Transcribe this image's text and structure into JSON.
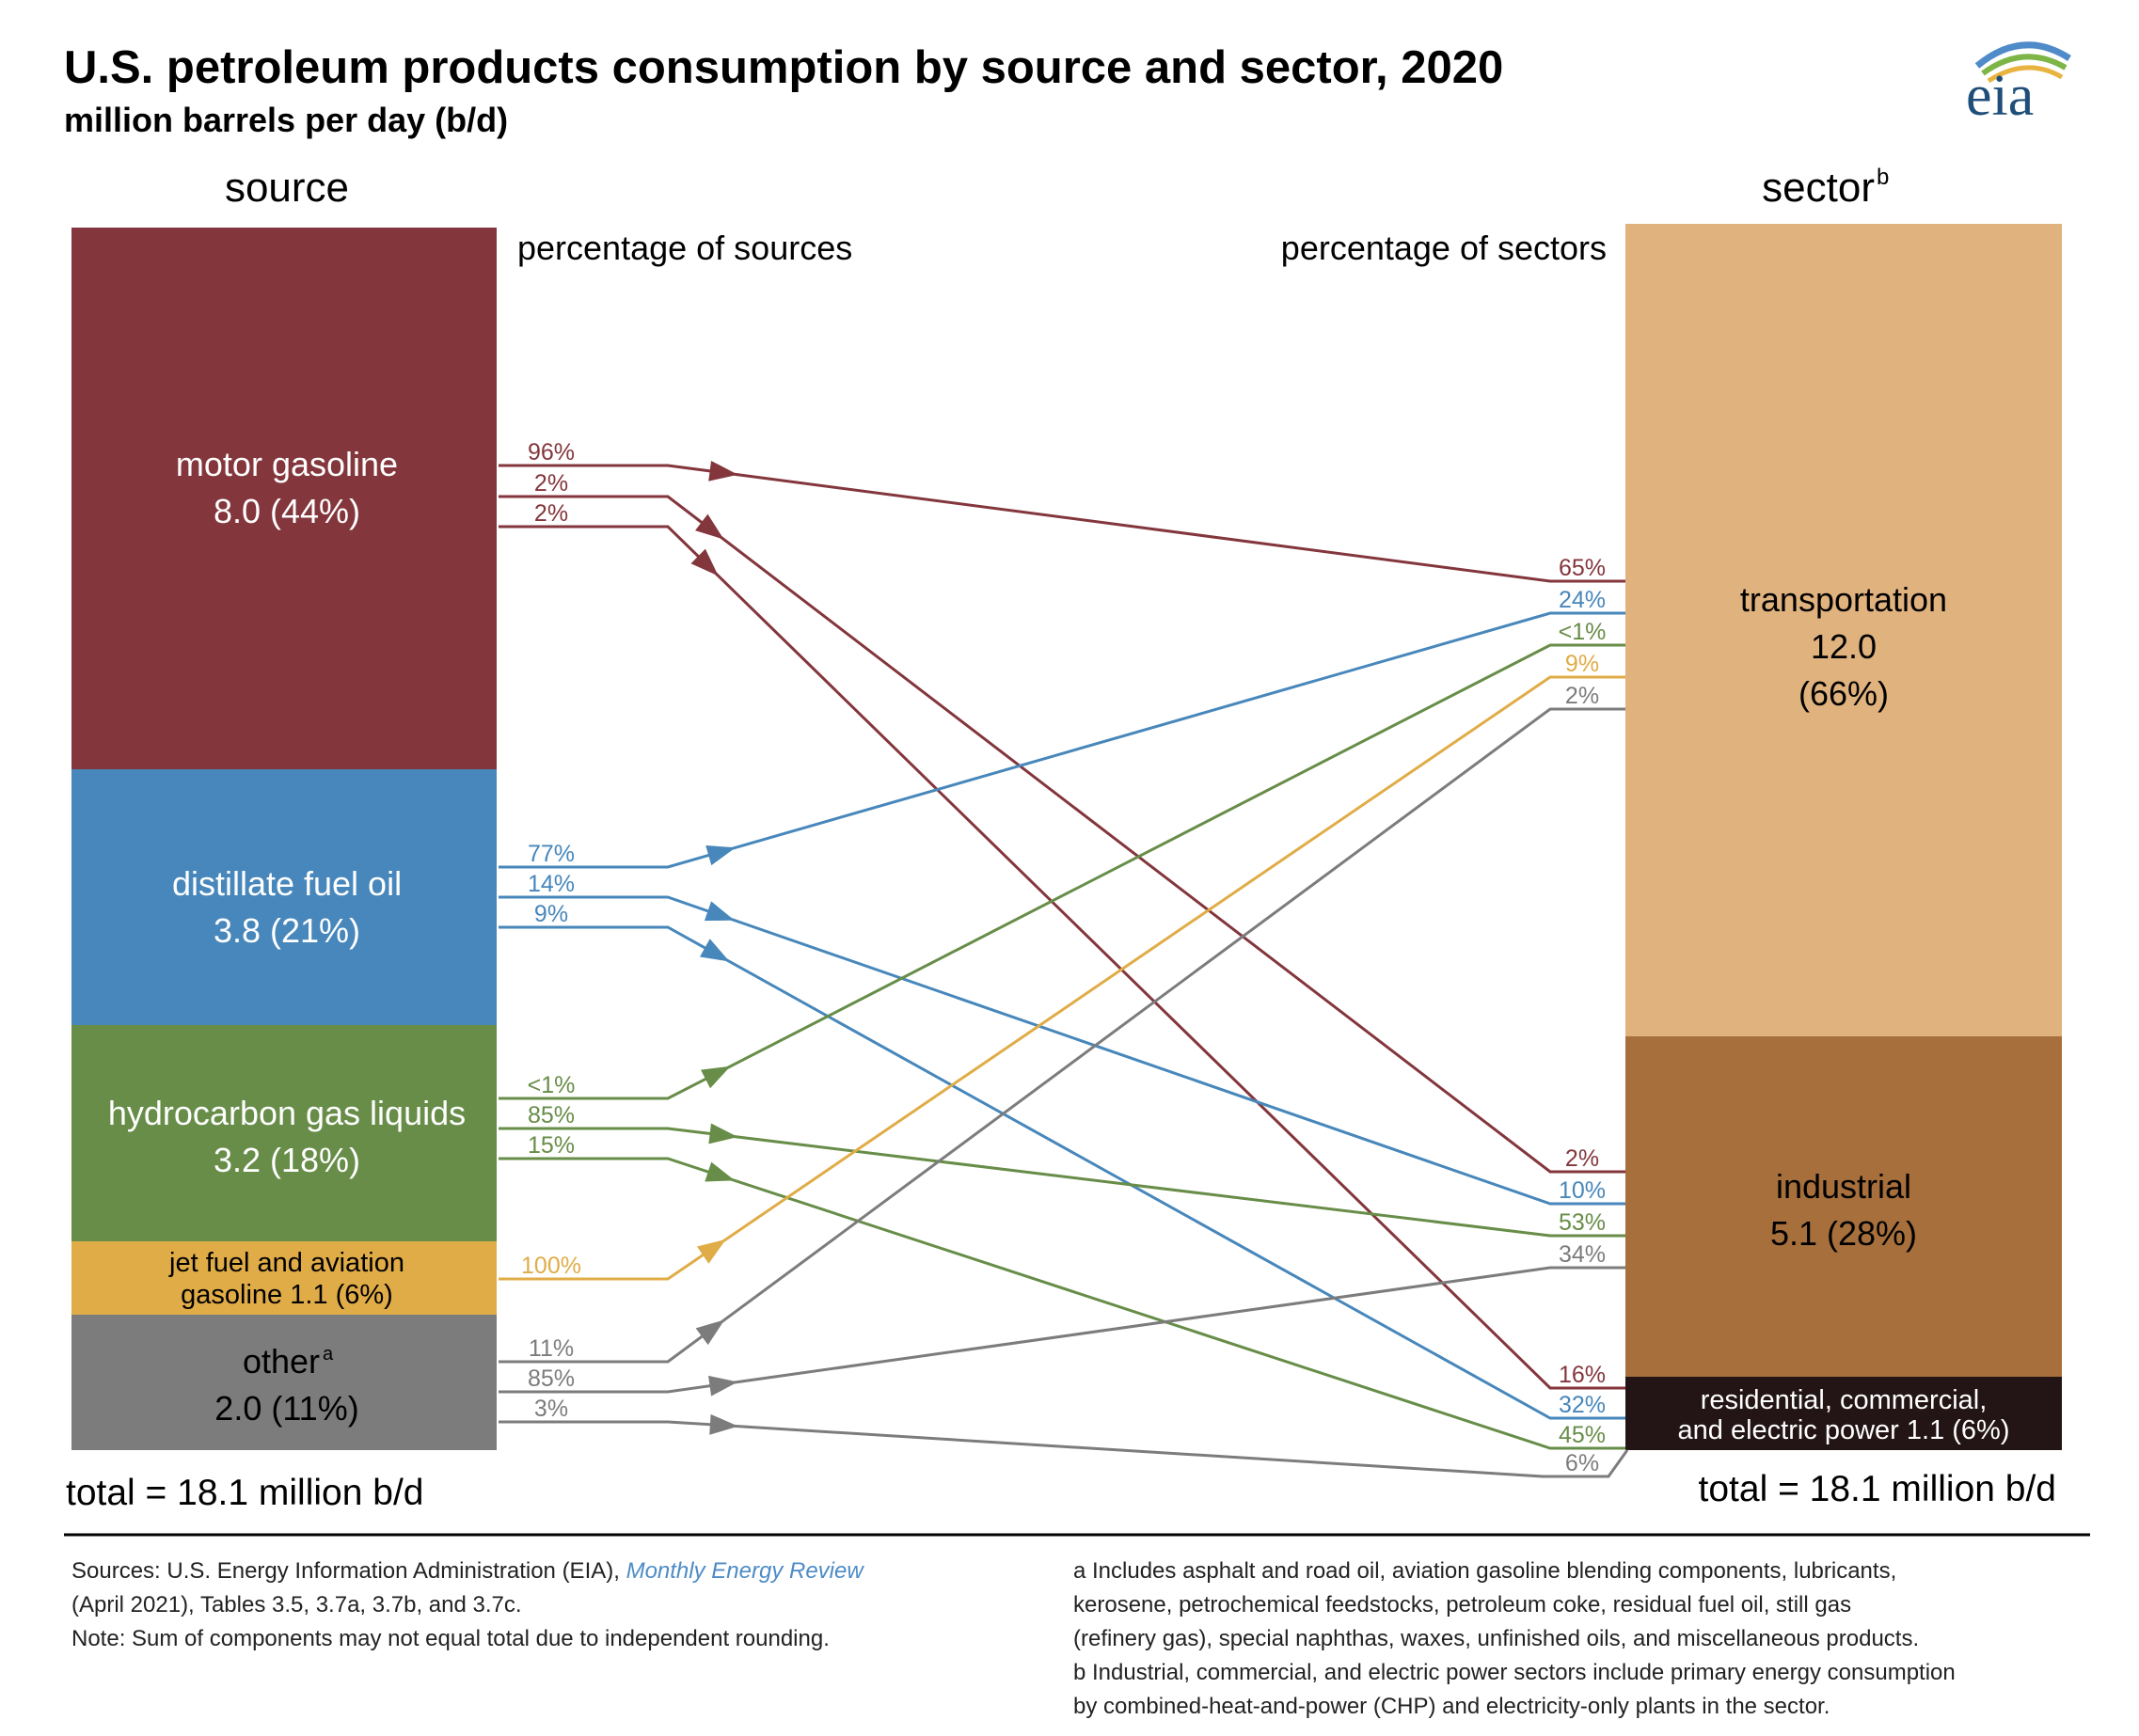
{
  "title": "U.S. petroleum products consumption by source and sector, 2020",
  "subtitle": "million barrels per day (b/d)",
  "logo_text": "eia",
  "chart_data": {
    "type": "sankey",
    "units": "million barrels per day (b/d)",
    "source_header": "source",
    "sector_header": "sector",
    "sector_header_sup": "b",
    "source_pct_label": "percentage of sources",
    "sector_pct_label": "percentage of sectors",
    "sources": [
      {
        "name": "motor gasoline",
        "value_text": "8.0 (44%)",
        "value": 8.0,
        "share": 44,
        "color": "#83363C"
      },
      {
        "name": "distillate fuel oil",
        "value_text": "3.8 (21%)",
        "value": 3.8,
        "share": 21,
        "color": "#4787BB"
      },
      {
        "name": "hydrocarbon gas liquids",
        "value_text": "3.2 (18%)",
        "value": 3.2,
        "share": 18,
        "color": "#678D48"
      },
      {
        "name": "jet fuel and aviation",
        "name2": "gasoline  1.1 (6%)",
        "value": 1.1,
        "share": 6,
        "color": "#E0AC47"
      },
      {
        "name": "other",
        "name_sup": "a",
        "value_text": "2.0 (11%)",
        "value": 2.0,
        "share": 11,
        "color": "#7C7C7C"
      }
    ],
    "sectors": [
      {
        "name": "transportation",
        "value_text": "12.0",
        "share_text": "(66%)",
        "value": 12.0,
        "share": 66,
        "color": "#E0B27E"
      },
      {
        "name": "industrial",
        "value_text": "5.1  (28%)",
        "value": 5.1,
        "share": 28,
        "color": "#A66F3C"
      },
      {
        "name": "residential, commercial,",
        "name2": "and electric power  1.1  (6%)",
        "value": 1.1,
        "share": 6,
        "color": "#231516"
      }
    ],
    "flows": [
      {
        "source": "motor gasoline",
        "sector": "transportation",
        "pct_source": "96%",
        "pct_sector": "65%"
      },
      {
        "source": "motor gasoline",
        "sector": "industrial",
        "pct_source": "2%",
        "pct_sector": "2%"
      },
      {
        "source": "motor gasoline",
        "sector": "residential, commercial, and electric power",
        "pct_source": "2%",
        "pct_sector": "16%"
      },
      {
        "source": "distillate fuel oil",
        "sector": "transportation",
        "pct_source": "77%",
        "pct_sector": "24%"
      },
      {
        "source": "distillate fuel oil",
        "sector": "industrial",
        "pct_source": "14%",
        "pct_sector": "10%"
      },
      {
        "source": "distillate fuel oil",
        "sector": "residential, commercial, and electric power",
        "pct_source": "9%",
        "pct_sector": "32%"
      },
      {
        "source": "hydrocarbon gas liquids",
        "sector": "transportation",
        "pct_source": "<1%",
        "pct_sector": "<1%"
      },
      {
        "source": "hydrocarbon gas liquids",
        "sector": "industrial",
        "pct_source": "85%",
        "pct_sector": "53%"
      },
      {
        "source": "hydrocarbon gas liquids",
        "sector": "residential, commercial, and electric power",
        "pct_source": "15%",
        "pct_sector": "45%"
      },
      {
        "source": "jet fuel and aviation gasoline",
        "sector": "transportation",
        "pct_source": "100%",
        "pct_sector": "9%"
      },
      {
        "source": "other",
        "sector": "transportation",
        "pct_source": "11%",
        "pct_sector": "2%"
      },
      {
        "source": "other",
        "sector": "industrial",
        "pct_source": "85%",
        "pct_sector": "34%"
      },
      {
        "source": "other",
        "sector": "residential, commercial, and electric power",
        "pct_source": "3%",
        "pct_sector": "6%"
      }
    ],
    "total_left": "total = 18.1 million b/d",
    "total_right": "total = 18.1 million b/d"
  },
  "footer": {
    "sources_prefix": "Sources: U.S. Energy Information Administration (EIA), ",
    "sources_link": "Monthly Energy Review",
    "sources_line2": "(April 2021), Tables 3.5, 3.7a, 3.7b, and 3.7c.",
    "note": "Note: Sum of components may not equal total due to independent rounding.",
    "note_a": [
      "a Includes asphalt and road oil, aviation gasoline blending components, lubricants,",
      "kerosene, petrochemical feedstocks, petroleum coke, residual fuel oil, still gas",
      "(refinery gas), special naphthas, waxes, unfinished oils, and miscellaneous products."
    ],
    "note_b": [
      "b Industrial, commercial, and electric power sectors include primary energy consumption",
      "by combined-heat-and-power (CHP) and electricity-only plants in the sector."
    ]
  }
}
